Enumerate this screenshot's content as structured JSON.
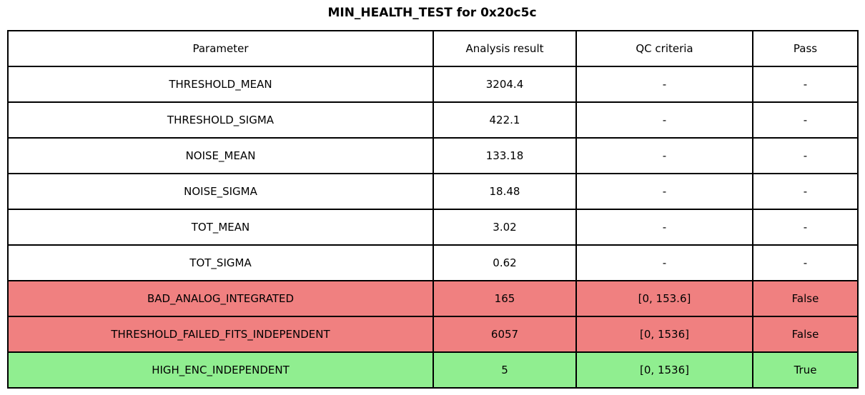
{
  "title": "MIN_HEALTH_TEST for 0x20c5c",
  "colors": {
    "fail_row": "#f08080",
    "pass_row": "#90ee90",
    "default_row": "#ffffff",
    "border": "#000000",
    "text": "#000000"
  },
  "chart_data": {
    "type": "table",
    "title": "MIN_HEALTH_TEST for 0x20c5c",
    "columns": [
      "Parameter",
      "Analysis result",
      "QC criteria",
      "Pass"
    ],
    "rows": [
      {
        "parameter": "THRESHOLD_MEAN",
        "result": "3204.4",
        "qc": "-",
        "pass": "-",
        "status": "default"
      },
      {
        "parameter": "THRESHOLD_SIGMA",
        "result": "422.1",
        "qc": "-",
        "pass": "-",
        "status": "default"
      },
      {
        "parameter": "NOISE_MEAN",
        "result": "133.18",
        "qc": "-",
        "pass": "-",
        "status": "default"
      },
      {
        "parameter": "NOISE_SIGMA",
        "result": "18.48",
        "qc": "-",
        "pass": "-",
        "status": "default"
      },
      {
        "parameter": "TOT_MEAN",
        "result": "3.02",
        "qc": "-",
        "pass": "-",
        "status": "default"
      },
      {
        "parameter": "TOT_SIGMA",
        "result": "0.62",
        "qc": "-",
        "pass": "-",
        "status": "default"
      },
      {
        "parameter": "BAD_ANALOG_INTEGRATED",
        "result": "165",
        "qc": "[0, 153.6]",
        "pass": "False",
        "status": "fail"
      },
      {
        "parameter": "THRESHOLD_FAILED_FITS_INDEPENDENT",
        "result": "6057",
        "qc": "[0, 1536]",
        "pass": "False",
        "status": "fail"
      },
      {
        "parameter": "HIGH_ENC_INDEPENDENT",
        "result": "5",
        "qc": "[0, 1536]",
        "pass": "True",
        "status": "pass"
      }
    ],
    "layout": {
      "grid": true,
      "header_row": true
    }
  }
}
